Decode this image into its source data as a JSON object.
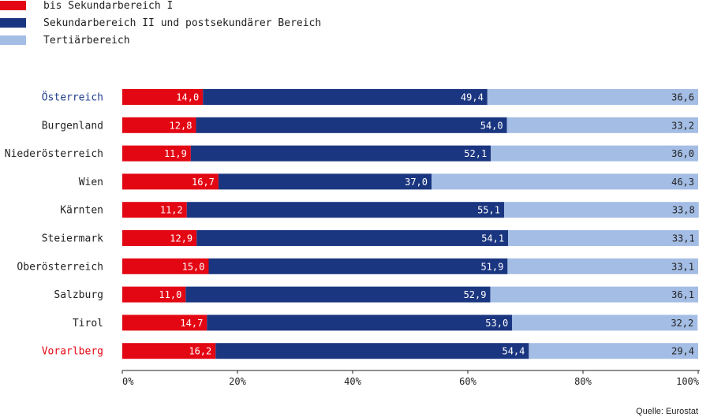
{
  "chart_data": {
    "type": "bar",
    "orientation": "horizontal",
    "stacked": true,
    "categories": [
      "Österreich",
      "Burgenland",
      "Niederösterreich",
      "Wien",
      "Kärnten",
      "Steiermark",
      "Oberösterreich",
      "Salzburg",
      "Tirol",
      "Vorarlberg"
    ],
    "category_colors": [
      "#1f3d8a",
      "#222222",
      "#222222",
      "#222222",
      "#222222",
      "#222222",
      "#222222",
      "#222222",
      "#222222",
      "#e30613"
    ],
    "series": [
      {
        "name": "bis Sekundarbereich I",
        "color": "#e30613",
        "label_color": "#ffffff",
        "values": [
          14.0,
          12.8,
          11.9,
          16.7,
          11.2,
          12.9,
          15.0,
          11.0,
          14.7,
          16.2
        ],
        "labels": [
          "14,0",
          "12,8",
          "11,9",
          "16,7",
          "11,2",
          "12,9",
          "15,0",
          "11,0",
          "14,7",
          "16,2"
        ]
      },
      {
        "name": "Sekundarbereich II und postsekundärer Bereich",
        "color": "#1b3680",
        "label_color": "#ffffff",
        "values": [
          49.4,
          54.0,
          52.1,
          37.0,
          55.1,
          54.1,
          51.9,
          52.9,
          53.0,
          54.4
        ],
        "labels": [
          "49,4",
          "54,0",
          "52,1",
          "37,0",
          "55,1",
          "54,1",
          "51,9",
          "52,9",
          "53,0",
          "54,4"
        ]
      },
      {
        "name": "Tertiärbereich",
        "color": "#a4bde5",
        "label_color": "#222222",
        "values": [
          36.6,
          33.2,
          36.0,
          46.3,
          33.8,
          33.1,
          33.1,
          36.1,
          32.2,
          29.4
        ],
        "labels": [
          "36,6",
          "33,2",
          "36,0",
          "46,3",
          "33,8",
          "33,1",
          "33,1",
          "36,1",
          "32,2",
          "29,4"
        ]
      }
    ],
    "xlim": [
      0,
      100
    ],
    "xticks": [
      0,
      20,
      40,
      60,
      80,
      100
    ],
    "xtick_labels": [
      "0%",
      "20%",
      "40%",
      "60%",
      "80%",
      "100%"
    ],
    "legend_position": "top-left",
    "grid": false,
    "title": "",
    "xlabel": "",
    "ylabel": ""
  },
  "source": "Quelle: Eurostat"
}
